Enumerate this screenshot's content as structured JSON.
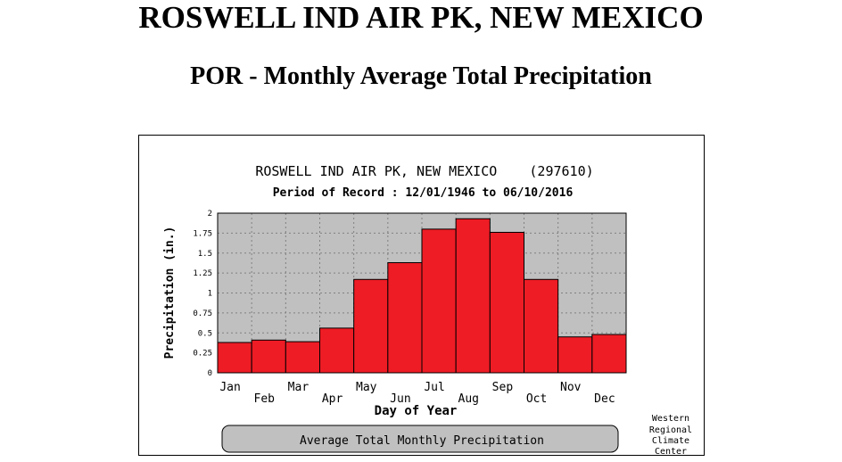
{
  "page": {
    "title": "ROSWELL IND AIR PK, NEW MEXICO",
    "subtitle": "POR - Monthly Average Total Precipitation"
  },
  "chart_data": {
    "type": "bar",
    "title": "ROSWELL IND AIR PK, NEW MEXICO    (297610)",
    "subtitle": "Period of Record : 12/01/1946 to 06/10/2016",
    "xlabel": "Day of Year",
    "ylabel": "Precipitation (in.)",
    "categories": [
      "Jan",
      "Feb",
      "Mar",
      "Apr",
      "May",
      "Jun",
      "Jul",
      "Aug",
      "Sep",
      "Oct",
      "Nov",
      "Dec"
    ],
    "values": [
      0.38,
      0.41,
      0.39,
      0.56,
      1.17,
      1.38,
      1.8,
      1.93,
      1.76,
      1.17,
      0.45,
      0.48
    ],
    "ylim": [
      0,
      2
    ],
    "yticks": [
      "0",
      "0.25",
      "0.5",
      "0.75",
      "1",
      "1.25",
      "1.5",
      "1.75",
      "2"
    ],
    "grid": true,
    "bar_color": "#ee1c25",
    "plot_background": "#c0c0c0",
    "legend_label": "Average Total Monthly Precipitation",
    "credit": [
      "Western",
      "Regional",
      "Climate",
      "Center"
    ]
  }
}
